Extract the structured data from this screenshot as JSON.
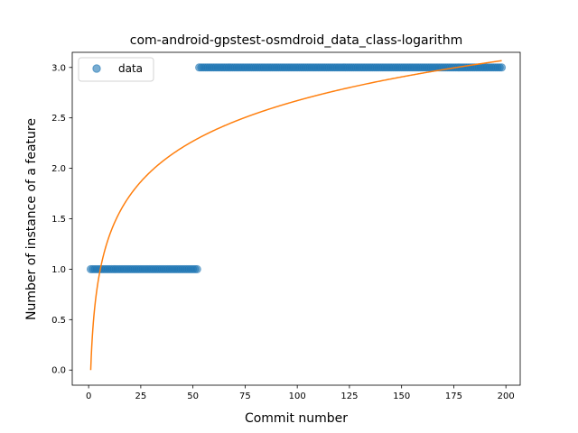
{
  "chart_data": {
    "type": "scatter",
    "title": "com-android-gpstest-osmdroid_data_class-logarithm",
    "xlabel": "Commit number",
    "ylabel": "Number of instance of a feature",
    "xlim": [
      -7.85,
      206.85
    ],
    "ylim": [
      -0.15,
      3.15
    ],
    "xticks": [
      0,
      25,
      50,
      75,
      100,
      125,
      150,
      175,
      200
    ],
    "yticks": [
      0.0,
      0.5,
      1.0,
      1.5,
      2.0,
      2.5,
      3.0
    ],
    "xtick_labels": [
      "0",
      "25",
      "50",
      "75",
      "100",
      "125",
      "150",
      "175",
      "200"
    ],
    "ytick_labels": [
      "0.0",
      "0.5",
      "1.0",
      "1.5",
      "2.0",
      "2.5",
      "3.0"
    ],
    "legend": {
      "position": "top-left",
      "entries": [
        "data"
      ]
    },
    "grid": false,
    "series": [
      {
        "name": "data",
        "kind": "scatter",
        "color": "#1f77b4",
        "opacity": 0.6,
        "segments": [
          {
            "x_start": 1,
            "x_end": 52,
            "y": 1
          },
          {
            "x_start": 53,
            "x_end": 198,
            "y": 3
          }
        ]
      },
      {
        "kind": "line",
        "color": "#ff7f0e",
        "fit": {
          "model": "logarithmic",
          "a": 0.58,
          "b": 0.0,
          "x_start": 1,
          "x_end": 198
        }
      }
    ]
  }
}
